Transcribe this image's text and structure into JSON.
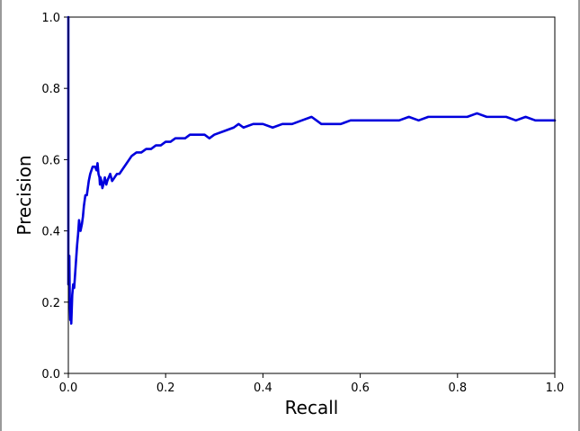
{
  "chart_data": {
    "type": "line",
    "title": "",
    "xlabel": "Recall",
    "ylabel": "Precision",
    "xlim": [
      0.0,
      1.0
    ],
    "ylim": [
      0.0,
      1.0
    ],
    "xticks": [
      "0.0",
      "0.2",
      "0.4",
      "0.6",
      "0.8",
      "1.0"
    ],
    "yticks": [
      "0.0",
      "0.2",
      "0.4",
      "0.6",
      "0.8",
      "1.0"
    ],
    "grid": false,
    "legend": "none",
    "series": [
      {
        "color": "#0000dd",
        "x": [
          0.0,
          0.0,
          0.002,
          0.003,
          0.004,
          0.005,
          0.006,
          0.008,
          0.01,
          0.012,
          0.015,
          0.018,
          0.02,
          0.022,
          0.025,
          0.028,
          0.03,
          0.032,
          0.035,
          0.038,
          0.04,
          0.042,
          0.045,
          0.05,
          0.055,
          0.058,
          0.06,
          0.062,
          0.064,
          0.065,
          0.066,
          0.068,
          0.07,
          0.072,
          0.075,
          0.078,
          0.08,
          0.083,
          0.086,
          0.09,
          0.095,
          0.1,
          0.105,
          0.11,
          0.12,
          0.13,
          0.14,
          0.15,
          0.16,
          0.17,
          0.18,
          0.19,
          0.2,
          0.21,
          0.22,
          0.23,
          0.24,
          0.25,
          0.26,
          0.27,
          0.28,
          0.29,
          0.3,
          0.32,
          0.34,
          0.35,
          0.36,
          0.38,
          0.4,
          0.42,
          0.44,
          0.46,
          0.48,
          0.5,
          0.51,
          0.52,
          0.54,
          0.56,
          0.58,
          0.6,
          0.62,
          0.64,
          0.66,
          0.68,
          0.7,
          0.72,
          0.74,
          0.76,
          0.78,
          0.8,
          0.82,
          0.84,
          0.86,
          0.88,
          0.9,
          0.92,
          0.94,
          0.96,
          0.98,
          1.0
        ],
        "y": [
          1.0,
          0.25,
          0.33,
          0.2,
          0.15,
          0.2,
          0.14,
          0.22,
          0.25,
          0.24,
          0.3,
          0.36,
          0.39,
          0.43,
          0.4,
          0.42,
          0.44,
          0.47,
          0.5,
          0.5,
          0.52,
          0.54,
          0.56,
          0.58,
          0.58,
          0.57,
          0.59,
          0.56,
          0.55,
          0.53,
          0.55,
          0.54,
          0.52,
          0.53,
          0.55,
          0.53,
          0.54,
          0.55,
          0.56,
          0.54,
          0.55,
          0.56,
          0.56,
          0.57,
          0.59,
          0.61,
          0.62,
          0.62,
          0.63,
          0.63,
          0.64,
          0.64,
          0.65,
          0.65,
          0.66,
          0.66,
          0.66,
          0.67,
          0.67,
          0.67,
          0.67,
          0.66,
          0.67,
          0.68,
          0.69,
          0.7,
          0.69,
          0.7,
          0.7,
          0.69,
          0.7,
          0.7,
          0.71,
          0.72,
          0.71,
          0.7,
          0.7,
          0.7,
          0.71,
          0.71,
          0.71,
          0.71,
          0.71,
          0.71,
          0.72,
          0.71,
          0.72,
          0.72,
          0.72,
          0.72,
          0.72,
          0.73,
          0.72,
          0.72,
          0.72,
          0.71,
          0.72,
          0.71,
          0.71,
          0.71
        ]
      }
    ]
  }
}
